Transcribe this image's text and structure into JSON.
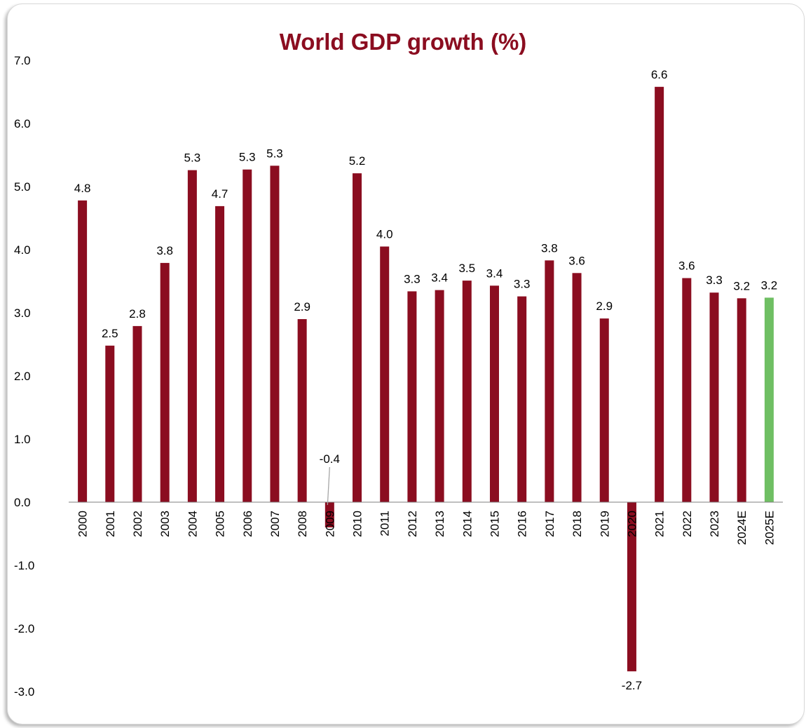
{
  "chart_data": {
    "type": "bar",
    "title": "World GDP growth (%)",
    "xlabel": "",
    "ylabel": "",
    "ylim": [
      -3.0,
      7.0
    ],
    "yticks": [
      "7.0",
      "6.0",
      "5.0",
      "4.0",
      "3.0",
      "2.0",
      "1.0",
      "0.0",
      "-1.0",
      "-2.0",
      "-3.0"
    ],
    "grid": false,
    "legend": "none",
    "categories": [
      "2000",
      "2001",
      "2002",
      "2003",
      "2004",
      "2005",
      "2006",
      "2007",
      "2008",
      "2009",
      "2010",
      "2011",
      "2012",
      "2013",
      "2014",
      "2015",
      "2016",
      "2017",
      "2018",
      "2019",
      "2020",
      "2021",
      "2022",
      "2023",
      "2024E",
      "2025E"
    ],
    "values": [
      4.78,
      2.48,
      2.79,
      3.79,
      5.26,
      4.69,
      5.27,
      5.33,
      2.9,
      -0.4,
      5.21,
      4.05,
      3.34,
      3.36,
      3.51,
      3.43,
      3.26,
      3.83,
      3.63,
      2.91,
      -2.68,
      6.58,
      3.55,
      3.32,
      3.23,
      3.24
    ],
    "data_labels": [
      "4.8",
      "2.5",
      "2.8",
      "3.8",
      "5.3",
      "4.7",
      "5.3",
      "5.3",
      "2.9",
      "-0.4",
      "5.2",
      "4.0",
      "3.3",
      "3.4",
      "3.5",
      "3.4",
      "3.3",
      "3.8",
      "3.6",
      "2.9",
      "-2.7",
      "6.6",
      "3.6",
      "3.3",
      "3.2",
      "3.2"
    ],
    "colors": {
      "actual": "#8b0d20",
      "estimate_2025": "#6fbf63",
      "title": "#8b0d20",
      "axis": "#7f7f7f",
      "text": "#000000"
    }
  }
}
